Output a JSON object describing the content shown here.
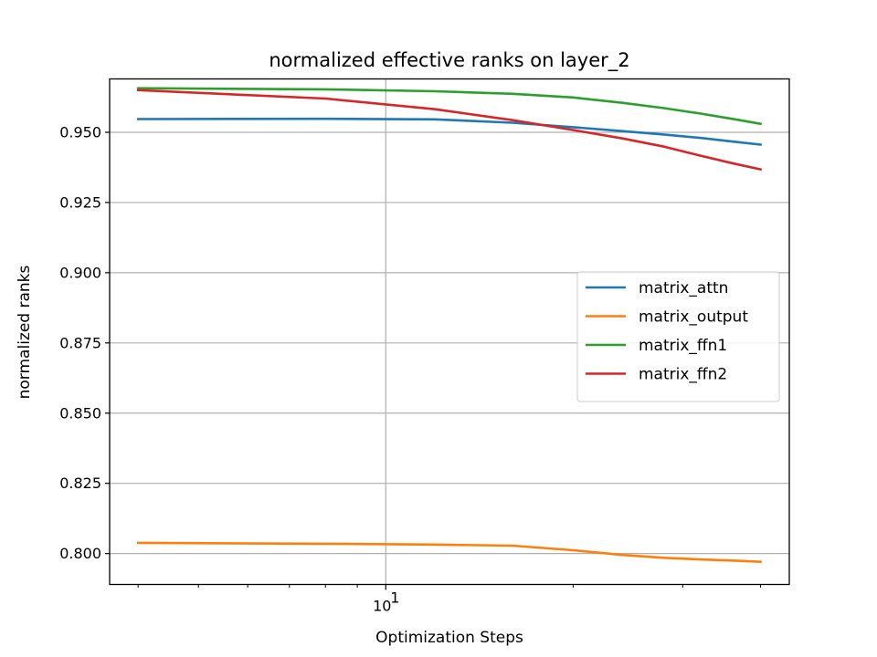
{
  "chart_data": {
    "type": "line",
    "title": "normalized effective ranks on layer_2",
    "xlabel": "Optimization Steps",
    "ylabel": "normalized ranks",
    "x_scale": "log",
    "x": [
      4,
      8,
      12,
      16,
      20,
      24,
      28,
      32,
      36,
      40
    ],
    "xlim": [
      3.6,
      44.5
    ],
    "ylim": [
      0.789,
      0.969
    ],
    "x_major_ticks": [
      {
        "value": 10,
        "label": "10"
      }
    ],
    "y_ticks": [
      {
        "value": 0.8,
        "label": "0.800"
      },
      {
        "value": 0.825,
        "label": "0.825"
      },
      {
        "value": 0.85,
        "label": "0.850"
      },
      {
        "value": 0.875,
        "label": "0.875"
      },
      {
        "value": 0.9,
        "label": "0.900"
      },
      {
        "value": 0.925,
        "label": "0.925"
      },
      {
        "value": 0.95,
        "label": "0.950"
      }
    ],
    "grid": true,
    "legend_position": "center-right",
    "series": [
      {
        "name": "matrix_attn",
        "color": "#1f77b4",
        "values": [
          0.9547,
          0.9548,
          0.9546,
          0.9534,
          0.9518,
          0.9504,
          0.9492,
          0.948,
          0.9467,
          0.9456
        ]
      },
      {
        "name": "matrix_output",
        "color": "#ff7f0e",
        "values": [
          0.8038,
          0.8035,
          0.8032,
          0.8028,
          0.8012,
          0.7995,
          0.7985,
          0.7979,
          0.7975,
          0.7971
        ]
      },
      {
        "name": "matrix_ffn1",
        "color": "#2ca02c",
        "values": [
          0.9657,
          0.9653,
          0.9646,
          0.9637,
          0.9624,
          0.9605,
          0.9586,
          0.9567,
          0.9548,
          0.953
        ]
      },
      {
        "name": "matrix_ffn2",
        "color": "#d62728",
        "values": [
          0.965,
          0.962,
          0.9582,
          0.9543,
          0.9508,
          0.9478,
          0.9449,
          0.9417,
          0.939,
          0.9368
        ]
      }
    ]
  }
}
